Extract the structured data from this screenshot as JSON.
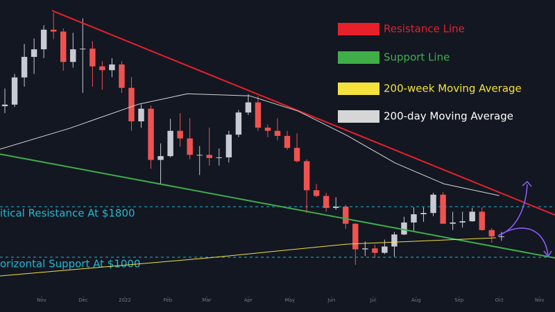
{
  "chart_data": {
    "type": "candlestick",
    "open": [
      3390,
      3415,
      3845,
      4170,
      4290,
      4600,
      4570,
      4090,
      4290,
      4300,
      4020,
      3960,
      4050,
      3680,
      3150,
      3350,
      2540,
      2600,
      3000,
      2880,
      2620,
      2620,
      2570,
      2580,
      2940,
      3290,
      3450,
      3050,
      3000,
      2920,
      2730,
      2520,
      2060,
      1970,
      1780,
      1800,
      1530,
      1125,
      1140,
      1070,
      1170,
      1360,
      1550,
      1680,
      1700,
      1990,
      1530,
      1550,
      1570,
      1720,
      1430,
      1330
    ],
    "high": [
      3670,
      3900,
      4375,
      4460,
      4670,
      4870,
      4620,
      4550,
      4780,
      4420,
      4100,
      4150,
      4100,
      3850,
      3420,
      3400,
      2800,
      3190,
      3280,
      3200,
      2760,
      3050,
      2720,
      3000,
      3330,
      3580,
      3550,
      3100,
      3200,
      3000,
      2960,
      2550,
      2160,
      2020,
      1950,
      1830,
      1540,
      1250,
      1200,
      1280,
      1400,
      1640,
      1790,
      1790,
      2020,
      2030,
      1720,
      1720,
      1780,
      1790,
      1460,
      1400
    ],
    "low": [
      3280,
      3380,
      3700,
      3900,
      4150,
      4450,
      3950,
      4000,
      3600,
      3700,
      3650,
      3850,
      3600,
      3000,
      3050,
      2400,
      2160,
      2580,
      2750,
      2550,
      2300,
      2450,
      2450,
      2500,
      2900,
      3250,
      3000,
      2900,
      2850,
      2700,
      2500,
      1700,
      1950,
      1720,
      1750,
      1450,
      880,
      1020,
      990,
      1050,
      1010,
      1350,
      1420,
      1560,
      1650,
      1530,
      1430,
      1470,
      1560,
      1420,
      1230,
      1260
    ],
    "close": [
      3415,
      3845,
      4170,
      4290,
      4600,
      4570,
      4090,
      4290,
      4300,
      4020,
      3960,
      4050,
      3680,
      3150,
      3350,
      2540,
      2600,
      3000,
      2880,
      2620,
      2620,
      2570,
      2580,
      2940,
      3290,
      3450,
      3050,
      3000,
      2920,
      2730,
      2520,
      2060,
      1970,
      1780,
      1800,
      1530,
      1125,
      1140,
      1070,
      1170,
      1360,
      1550,
      1680,
      1700,
      1990,
      1530,
      1550,
      1570,
      1720,
      1430,
      1330,
      1330
    ],
    "up_color": "#c8cbd3",
    "down_color": "#ef5350",
    "xlim": [
      -0.5,
      56.5
    ],
    "ylim": [
      353,
      5070
    ],
    "xticks": [
      {
        "value": 3.77,
        "label": "Nov"
      },
      {
        "value": 8.05,
        "label": "Dec"
      },
      {
        "value": 12.32,
        "label": "2022"
      },
      {
        "value": 16.74,
        "label": "Feb"
      },
      {
        "value": 20.72,
        "label": "Mar"
      },
      {
        "value": 25.0,
        "label": "Apr"
      },
      {
        "value": 29.27,
        "label": "May"
      },
      {
        "value": 33.55,
        "label": "Jun"
      },
      {
        "value": 37.82,
        "label": "Jul"
      },
      {
        "value": 42.24,
        "label": "Aug"
      },
      {
        "value": 46.65,
        "label": "Sep"
      },
      {
        "value": 50.78,
        "label": "Oct"
      },
      {
        "value": 54.91,
        "label": "Nov"
      }
    ],
    "series": [
      {
        "name": "Resistance Line",
        "color": "#e8202a",
        "text_color": "#e8202a",
        "x": [
          4.84,
          56.5
        ],
        "values": [
          4902,
          1668
        ]
      },
      {
        "name": "Support Line",
        "color": "#3fae49",
        "text_color": "#3fae49",
        "x": [
          -0.5,
          56.5
        ],
        "values": [
          2633,
          989
        ]
      },
      {
        "name": "200-week Moving Average",
        "color": "#f5e33b",
        "text_color": "#f5e33b",
        "x": [
          -0.5,
          20.87,
          35.11,
          50.43
        ],
        "values": [
          704,
          989,
          1208,
          1307
        ]
      },
      {
        "name": "200-day Moving Average",
        "color": "#d6d6d6",
        "text_color": "#ffffff",
        "x": [
          -0.5,
          6.62,
          13.74,
          18.73,
          25.14,
          30.13,
          35.11,
          40.1,
          45.08,
          50.78
        ],
        "values": [
          2710,
          3038,
          3422,
          3586,
          3554,
          3312,
          2929,
          2490,
          2162,
          1975
        ]
      }
    ],
    "levels": [
      {
        "value": 1800,
        "label": "itical Resistance At $1800",
        "color": "#22b8cf"
      },
      {
        "value": 1000,
        "label": "orizontal Support At $1000",
        "color": "#22b8cf"
      }
    ]
  }
}
